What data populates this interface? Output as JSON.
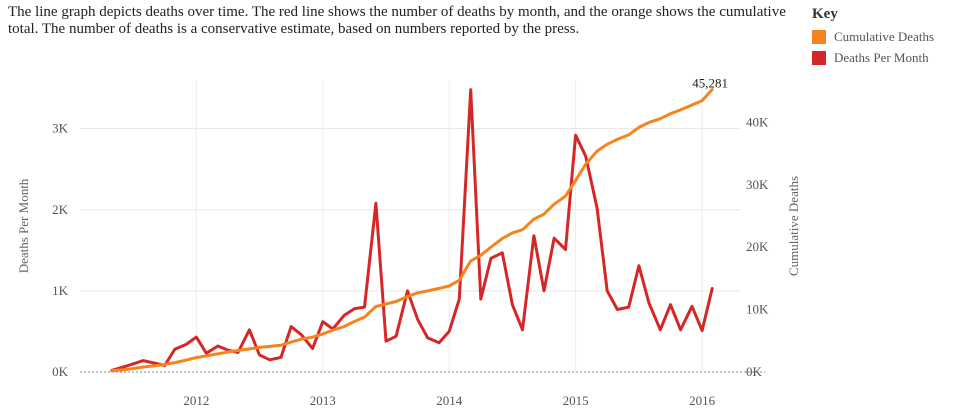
{
  "description": "The line graph depicts deaths over time. The red line shows the number of deaths by month, and the orange shows the cumulative total. The number of deaths is a conservative estimate, based on numbers reported by the press.",
  "key": {
    "title": "Key",
    "items": [
      {
        "label": "Cumulative Deaths",
        "color": "#f5841f"
      },
      {
        "label": "Deaths Per Month",
        "color": "#d62728"
      }
    ]
  },
  "chart_data": {
    "type": "line",
    "xlabel": "",
    "x_ticks": [
      2012,
      2013,
      2014,
      2015,
      2016
    ],
    "xlim": [
      2011.08,
      2016.3
    ],
    "left_axis": {
      "label": "Deaths Per Month",
      "ylim": [
        0,
        3600
      ],
      "ticks": [
        {
          "v": 0,
          "label": "0K"
        },
        {
          "v": 1000,
          "label": "1K"
        },
        {
          "v": 2000,
          "label": "2K"
        },
        {
          "v": 3000,
          "label": "3K"
        }
      ]
    },
    "right_axis": {
      "label": "Cumulative Deaths",
      "ylim": [
        0,
        46800
      ],
      "ticks": [
        {
          "v": 0,
          "label": "0K"
        },
        {
          "v": 10000,
          "label": "10K"
        },
        {
          "v": 20000,
          "label": "20K"
        },
        {
          "v": 30000,
          "label": "30K"
        },
        {
          "v": 40000,
          "label": "40K"
        }
      ]
    },
    "annotation": {
      "text": "45,281"
    },
    "series": [
      {
        "name": "Deaths Per Month",
        "axis": "left",
        "color": "#d62728",
        "points": [
          [
            2011.33,
            20
          ],
          [
            2011.42,
            60
          ],
          [
            2011.5,
            100
          ],
          [
            2011.58,
            140
          ],
          [
            2011.67,
            110
          ],
          [
            2011.75,
            80
          ],
          [
            2011.83,
            280
          ],
          [
            2011.92,
            340
          ],
          [
            2012.0,
            430
          ],
          [
            2012.08,
            230
          ],
          [
            2012.17,
            320
          ],
          [
            2012.25,
            270
          ],
          [
            2012.33,
            240
          ],
          [
            2012.42,
            520
          ],
          [
            2012.5,
            210
          ],
          [
            2012.58,
            150
          ],
          [
            2012.67,
            180
          ],
          [
            2012.75,
            560
          ],
          [
            2012.83,
            460
          ],
          [
            2012.92,
            290
          ],
          [
            2013.0,
            620
          ],
          [
            2013.08,
            530
          ],
          [
            2013.17,
            700
          ],
          [
            2013.25,
            780
          ],
          [
            2013.33,
            800
          ],
          [
            2013.42,
            2080
          ],
          [
            2013.5,
            380
          ],
          [
            2013.58,
            440
          ],
          [
            2013.67,
            1000
          ],
          [
            2013.75,
            650
          ],
          [
            2013.83,
            420
          ],
          [
            2013.92,
            360
          ],
          [
            2014.0,
            500
          ],
          [
            2014.08,
            900
          ],
          [
            2014.17,
            3480
          ],
          [
            2014.25,
            900
          ],
          [
            2014.33,
            1400
          ],
          [
            2014.42,
            1470
          ],
          [
            2014.5,
            830
          ],
          [
            2014.58,
            520
          ],
          [
            2014.67,
            1680
          ],
          [
            2014.75,
            1000
          ],
          [
            2014.83,
            1650
          ],
          [
            2014.92,
            1510
          ],
          [
            2015.0,
            2920
          ],
          [
            2015.08,
            2660
          ],
          [
            2015.17,
            2020
          ],
          [
            2015.25,
            1000
          ],
          [
            2015.33,
            770
          ],
          [
            2015.42,
            800
          ],
          [
            2015.5,
            1310
          ],
          [
            2015.58,
            850
          ],
          [
            2015.67,
            520
          ],
          [
            2015.75,
            830
          ],
          [
            2015.83,
            520
          ],
          [
            2015.92,
            810
          ],
          [
            2016.0,
            510
          ],
          [
            2016.08,
            1030
          ]
        ]
      },
      {
        "name": "Cumulative Deaths",
        "axis": "right",
        "color": "#f5841f",
        "points": [
          [
            2011.33,
            200
          ],
          [
            2011.42,
            350
          ],
          [
            2011.5,
            550
          ],
          [
            2011.58,
            800
          ],
          [
            2011.67,
            1000
          ],
          [
            2011.75,
            1200
          ],
          [
            2011.83,
            1500
          ],
          [
            2011.92,
            1900
          ],
          [
            2012.0,
            2300
          ],
          [
            2012.08,
            2600
          ],
          [
            2012.17,
            2900
          ],
          [
            2012.25,
            3200
          ],
          [
            2012.33,
            3450
          ],
          [
            2012.42,
            3700
          ],
          [
            2012.5,
            3950
          ],
          [
            2012.58,
            4100
          ],
          [
            2012.67,
            4300
          ],
          [
            2012.75,
            4800
          ],
          [
            2012.83,
            5250
          ],
          [
            2012.92,
            5600
          ],
          [
            2013.0,
            6100
          ],
          [
            2013.08,
            6700
          ],
          [
            2013.17,
            7300
          ],
          [
            2013.25,
            8100
          ],
          [
            2013.33,
            8800
          ],
          [
            2013.42,
            10500
          ],
          [
            2013.5,
            10900
          ],
          [
            2013.58,
            11300
          ],
          [
            2013.67,
            12100
          ],
          [
            2013.75,
            12700
          ],
          [
            2013.83,
            13000
          ],
          [
            2013.92,
            13400
          ],
          [
            2014.0,
            13800
          ],
          [
            2014.08,
            14700
          ],
          [
            2014.17,
            17800
          ],
          [
            2014.25,
            18700
          ],
          [
            2014.33,
            20000
          ],
          [
            2014.42,
            21400
          ],
          [
            2014.5,
            22300
          ],
          [
            2014.58,
            22800
          ],
          [
            2014.67,
            24500
          ],
          [
            2014.75,
            25300
          ],
          [
            2014.83,
            26900
          ],
          [
            2014.92,
            28200
          ],
          [
            2015.0,
            30700
          ],
          [
            2015.08,
            33300
          ],
          [
            2015.17,
            35400
          ],
          [
            2015.25,
            36500
          ],
          [
            2015.33,
            37300
          ],
          [
            2015.42,
            38000
          ],
          [
            2015.5,
            39200
          ],
          [
            2015.58,
            40000
          ],
          [
            2015.67,
            40600
          ],
          [
            2015.75,
            41400
          ],
          [
            2015.83,
            42000
          ],
          [
            2015.92,
            42800
          ],
          [
            2016.0,
            43500
          ],
          [
            2016.08,
            45281
          ]
        ]
      }
    ]
  }
}
